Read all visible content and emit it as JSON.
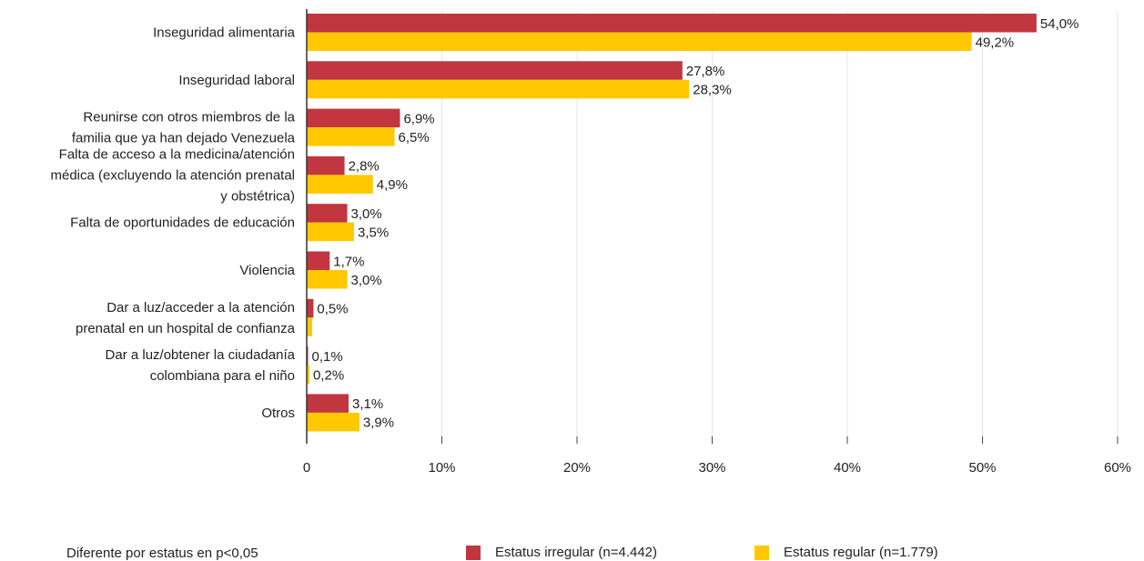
{
  "chart_data": {
    "type": "bar",
    "orientation": "horizontal",
    "categories": [
      [
        "Inseguridad alimentaria"
      ],
      [
        "Inseguridad laboral"
      ],
      [
        "Reunirse con otros miembros de la",
        "familia que ya han dejado Venezuela"
      ],
      [
        "Falta de acceso a la medicina/atención",
        "médica (excluyendo la atención prenatal",
        "y obstétrica)"
      ],
      [
        "Falta de oportunidades de educación"
      ],
      [
        "Violencia"
      ],
      [
        "Dar a luz/acceder a la atención",
        "prenatal en un hospital de confianza"
      ],
      [
        "Dar a luz/obtener la ciudadanía",
        "colombiana para el niño"
      ],
      [
        "Otros"
      ]
    ],
    "series": [
      {
        "name": "Estatus irregular (n=4.442)",
        "color": "#c1363f",
        "values": [
          54.0,
          27.8,
          6.9,
          2.8,
          3.0,
          1.7,
          0.5,
          0.1,
          3.1
        ],
        "labels": [
          "54,0%",
          "27,8%",
          "6,9%",
          "2,8%",
          "3,0%",
          "1,7%",
          "0,5%",
          "0,1%",
          "3,1%"
        ]
      },
      {
        "name": "Estatus regular (n=1.779)",
        "color": "#ffc800",
        "values": [
          49.2,
          28.3,
          6.5,
          4.9,
          3.5,
          3.0,
          0.4,
          0.2,
          3.9
        ],
        "labels": [
          "49,2%",
          "28,3%",
          "6,5%",
          "4,9%",
          "3,5%",
          "3,0%",
          "",
          "0,2%",
          "3,9%"
        ]
      }
    ],
    "xlim": [
      0,
      60
    ],
    "xticks": [
      0,
      10,
      20,
      30,
      40,
      50,
      60
    ],
    "xtick_labels": [
      "0",
      "10%",
      "20%",
      "30%",
      "40%",
      "50%",
      "60%"
    ],
    "grid": "vertical",
    "legend_position": "bottom",
    "note": "Diferente por estatus en p<0,05"
  }
}
